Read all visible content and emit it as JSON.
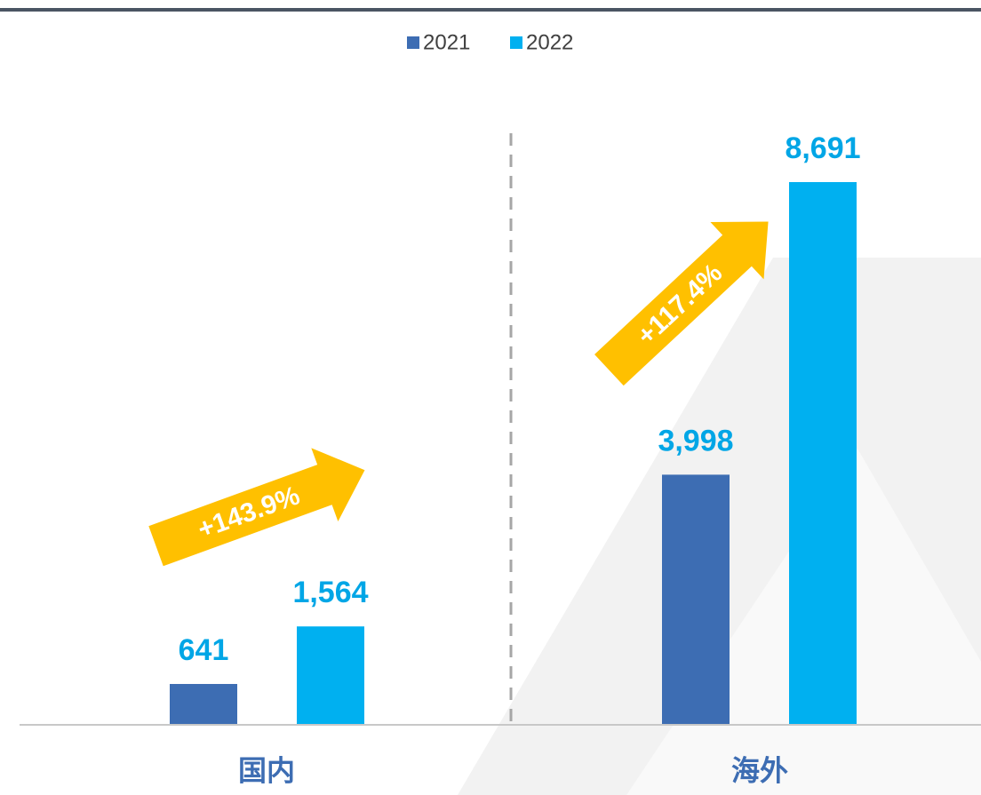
{
  "chart_data": {
    "type": "bar",
    "categories": [
      "国内",
      "海外"
    ],
    "series": [
      {
        "name": "2021",
        "color": "#3d6db3",
        "values": [
          641,
          3998
        ],
        "value_labels": [
          "641",
          "3,998"
        ]
      },
      {
        "name": "2022",
        "color": "#00b0f0",
        "values": [
          1564,
          8691
        ],
        "value_labels": [
          "1,564",
          "8,691"
        ]
      }
    ],
    "annotations": [
      "+143.9%",
      "+117.4%"
    ]
  }
}
